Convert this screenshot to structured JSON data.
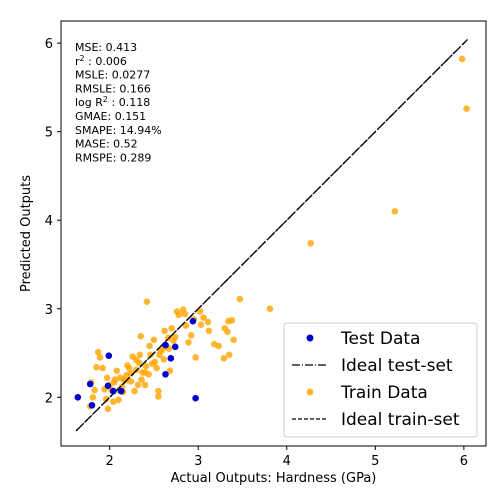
{
  "chart_data": {
    "type": "scatter",
    "xlabel": "Actual Outputs: Hardness (GPa)",
    "ylabel": "Predicted Outputs",
    "xlim": [
      1.45,
      6.25
    ],
    "ylim": [
      1.45,
      6.25
    ],
    "xticks": [
      2,
      3,
      4,
      5,
      6
    ],
    "yticks": [
      2,
      3,
      4,
      5,
      6
    ],
    "grid": false,
    "legend_position": "bottom-right",
    "metrics": [
      {
        "text": "MSE: 0.413"
      },
      {
        "text": "r",
        "sup": "2",
        "rest": " : 0.006"
      },
      {
        "text": "MSLE: 0.0277"
      },
      {
        "text": "RMSLE: 0.166"
      },
      {
        "text": "log R",
        "sup": "2",
        "rest": " : 0.118"
      },
      {
        "text": "GMAE: 0.151"
      },
      {
        "text": "SMAPE: 14.94%"
      },
      {
        "text": "MASE: 0.52"
      },
      {
        "text": "RMSPE: 0.289"
      }
    ],
    "colors": {
      "test": "#0000cc",
      "train": "#ffa500",
      "ideal": "#000000"
    },
    "series": [
      {
        "name": "Train Data",
        "role": "train",
        "points": [
          [
            5.98,
            5.82
          ],
          [
            6.03,
            5.26
          ],
          [
            5.22,
            4.1
          ],
          [
            4.27,
            3.74
          ],
          [
            3.81,
            3.0
          ],
          [
            3.47,
            3.11
          ],
          [
            2.42,
            3.08
          ],
          [
            2.35,
            2.69
          ],
          [
            2.62,
            2.75
          ],
          [
            2.78,
            2.93
          ],
          [
            2.85,
            2.94
          ],
          [
            2.76,
            2.97
          ],
          [
            2.83,
            2.99
          ],
          [
            2.7,
            2.78
          ],
          [
            2.92,
            2.7
          ],
          [
            3.03,
            2.82
          ],
          [
            3.12,
            2.75
          ],
          [
            3.02,
            2.97
          ],
          [
            3.11,
            2.85
          ],
          [
            3.23,
            2.58
          ],
          [
            3.3,
            2.78
          ],
          [
            3.34,
            2.86
          ],
          [
            3.33,
            2.74
          ],
          [
            3.38,
            2.87
          ],
          [
            3.4,
            2.65
          ],
          [
            3.35,
            2.48
          ],
          [
            3.29,
            2.44
          ],
          [
            3.18,
            2.6
          ],
          [
            2.97,
            2.45
          ],
          [
            2.89,
            2.62
          ],
          [
            2.74,
            2.68
          ],
          [
            2.67,
            2.55
          ],
          [
            2.58,
            2.52
          ],
          [
            2.61,
            2.43
          ],
          [
            2.51,
            2.4
          ],
          [
            2.46,
            2.48
          ],
          [
            2.41,
            2.35
          ],
          [
            2.37,
            2.28
          ],
          [
            2.33,
            2.39
          ],
          [
            2.3,
            2.31
          ],
          [
            2.26,
            2.46
          ],
          [
            2.22,
            2.33
          ],
          [
            2.19,
            2.25
          ],
          [
            2.16,
            2.2
          ],
          [
            2.14,
            2.12
          ],
          [
            2.11,
            2.08
          ],
          [
            2.08,
            2.3
          ],
          [
            2.05,
            2.17
          ],
          [
            2.02,
            2.08
          ],
          [
            2.0,
            2.14
          ],
          [
            1.97,
            2.22
          ],
          [
            1.94,
            2.09
          ],
          [
            1.92,
            2.33
          ],
          [
            1.89,
            2.45
          ],
          [
            1.87,
            2.51
          ],
          [
            1.85,
            2.34
          ],
          [
            1.83,
            2.08
          ],
          [
            1.81,
            2.0
          ],
          [
            1.79,
            2.17
          ],
          [
            1.78,
            1.9
          ],
          [
            1.96,
            1.98
          ],
          [
            1.98,
            1.87
          ],
          [
            2.04,
            1.95
          ],
          [
            2.1,
            1.97
          ],
          [
            2.12,
            2.22
          ],
          [
            2.18,
            2.19
          ],
          [
            2.24,
            2.18
          ],
          [
            2.28,
            2.07
          ],
          [
            2.32,
            2.14
          ],
          [
            2.36,
            2.2
          ],
          [
            2.4,
            2.14
          ],
          [
            2.44,
            2.26
          ],
          [
            2.48,
            2.38
          ],
          [
            2.53,
            2.33
          ],
          [
            2.56,
            2.48
          ],
          [
            2.6,
            2.55
          ],
          [
            2.64,
            2.58
          ],
          [
            2.68,
            2.3
          ],
          [
            2.55,
            2.07
          ],
          [
            2.55,
            2.01
          ],
          [
            2.4,
            2.28
          ],
          [
            2.3,
            2.42
          ],
          [
            2.2,
            2.36
          ],
          [
            2.06,
            2.2
          ],
          [
            2.15,
            2.06
          ],
          [
            2.24,
            2.27
          ],
          [
            2.34,
            2.48
          ],
          [
            2.45,
            2.58
          ],
          [
            2.5,
            2.65
          ],
          [
            2.66,
            2.67
          ],
          [
            2.72,
            2.64
          ],
          [
            2.86,
            2.81
          ],
          [
            2.95,
            2.88
          ],
          [
            3.06,
            2.9
          ]
        ]
      },
      {
        "name": "Test Data",
        "role": "test",
        "points": [
          [
            1.64,
            2.0
          ],
          [
            1.78,
            2.15
          ],
          [
            1.8,
            1.91
          ],
          [
            1.99,
            2.47
          ],
          [
            1.98,
            2.13
          ],
          [
            2.04,
            2.07
          ],
          [
            2.13,
            2.07
          ],
          [
            2.63,
            2.26
          ],
          [
            2.63,
            2.59
          ],
          [
            2.69,
            2.44
          ],
          [
            2.74,
            2.57
          ],
          [
            2.94,
            2.86
          ],
          [
            2.97,
            1.99
          ]
        ]
      },
      {
        "name": "Ideal test-set",
        "role": "ideal-test",
        "line": [
          [
            1.62,
            1.62
          ],
          [
            6.04,
            6.04
          ]
        ]
      },
      {
        "name": "Ideal train-set",
        "role": "ideal-train",
        "line": [
          [
            1.62,
            1.62
          ],
          [
            6.04,
            6.04
          ]
        ]
      }
    ],
    "legend": [
      "Test Data",
      "Ideal test-set",
      "Train Data",
      "Ideal train-set"
    ]
  }
}
